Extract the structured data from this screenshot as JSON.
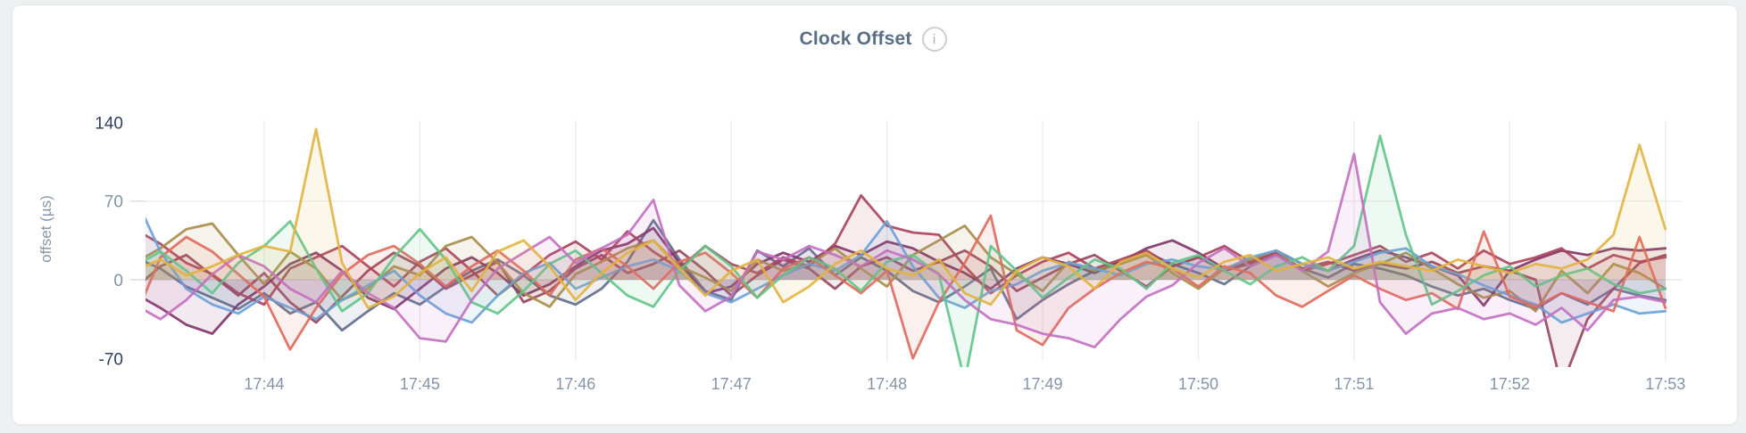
{
  "card": {
    "title": "Clock Offset",
    "info_icon_glyph": "i"
  },
  "axis": {
    "ylabel": "offset (µs)",
    "y_ticks": [
      140,
      70,
      0,
      -70
    ],
    "y_tick_color_major": "#32405f",
    "y_tick_color_minor": "#8594a6",
    "x_label_color": "#8594a6",
    "ylabel_color": "#8897a8",
    "grid_color": "#ededee",
    "zero_line_color": "#e4e5e7",
    "tick_dash_color": "#d9dbde"
  },
  "chart_data": {
    "type": "line",
    "title": "Clock Offset",
    "xlabel": "",
    "ylabel": "offset (µs)",
    "ylim": [
      -75,
      145
    ],
    "grid": true,
    "legend": "none",
    "x_start": "17:43:10",
    "x_interval_seconds": 10,
    "x_tick_labels": [
      "17:44",
      "17:45",
      "17:46",
      "17:47",
      "17:48",
      "17:49",
      "17:50",
      "17:51",
      "17:52",
      "17:53"
    ],
    "x_tick_indices": [
      5,
      11,
      17,
      23,
      29,
      35,
      41,
      47,
      53,
      59
    ],
    "fill_opacity": 0.1,
    "series": [
      {
        "id": "series-slate",
        "color": "#5e6c87",
        "values": [
          20,
          10,
          -6,
          -16,
          -26,
          -12,
          -30,
          -20,
          -45,
          -28,
          -12,
          -22,
          -6,
          8,
          18,
          4,
          -14,
          -22,
          -8,
          16,
          53,
          18,
          -10,
          -18,
          26,
          12,
          28,
          4,
          20,
          8,
          -10,
          -20,
          -6,
          10,
          -35,
          -18,
          -4,
          8,
          16,
          24,
          14,
          6,
          -4,
          12,
          22,
          10,
          2,
          14,
          10,
          4,
          -6,
          -14,
          -8,
          -18,
          -26,
          -12,
          -22,
          -8,
          -14,
          -18
        ]
      },
      {
        "id": "series-wine",
        "color": "#96455a",
        "values": [
          -8,
          12,
          22,
          4,
          -14,
          6,
          -20,
          -38,
          -15,
          8,
          24,
          12,
          -8,
          4,
          16,
          -20,
          -10,
          10,
          22,
          6,
          14,
          26,
          8,
          -14,
          4,
          18,
          10,
          -8,
          12,
          20,
          8,
          16,
          26,
          12,
          -10,
          2,
          14,
          22,
          8,
          -6,
          12,
          20,
          8,
          14,
          24,
          10,
          16,
          8,
          14,
          10,
          16,
          6,
          12,
          8,
          0,
          -95,
          -35,
          -8,
          15,
          22
        ]
      },
      {
        "id": "series-plum",
        "color": "#7d3366",
        "values": [
          -12,
          -25,
          -40,
          -48,
          -22,
          -6,
          14,
          24,
          8,
          -16,
          -26,
          -8,
          10,
          20,
          6,
          -14,
          -4,
          12,
          26,
          32,
          46,
          15,
          -12,
          -6,
          14,
          24,
          16,
          30,
          22,
          34,
          28,
          16,
          6,
          -8,
          10,
          20,
          14,
          6,
          16,
          28,
          35,
          24,
          10,
          16,
          26,
          14,
          8,
          18,
          26,
          20,
          12,
          4,
          -23,
          8,
          18,
          26,
          22,
          28,
          26,
          28
        ]
      },
      {
        "id": "series-maroon",
        "color": "#a84059",
        "values": [
          45,
          32,
          15,
          5,
          -12,
          -22,
          10,
          20,
          30,
          12,
          -6,
          16,
          28,
          8,
          -14,
          4,
          22,
          34,
          18,
          43,
          25,
          10,
          30,
          14,
          6,
          20,
          12,
          32,
          75,
          48,
          42,
          40,
          12,
          -12,
          4,
          16,
          24,
          10,
          18,
          26,
          12,
          20,
          30,
          16,
          24,
          8,
          14,
          22,
          30,
          16,
          24,
          10,
          26,
          14,
          20,
          28,
          10,
          22,
          16,
          20
        ]
      },
      {
        "id": "series-olive",
        "color": "#a98b4a",
        "values": [
          15,
          28,
          45,
          50,
          22,
          -4,
          25,
          10,
          -18,
          -8,
          12,
          4,
          30,
          38,
          15,
          -12,
          -24,
          5,
          16,
          28,
          35,
          12,
          2,
          -10,
          18,
          8,
          14,
          28,
          10,
          -6,
          22,
          35,
          48,
          20,
          5,
          -10,
          16,
          8,
          14,
          22,
          6,
          -8,
          10,
          18,
          26,
          8,
          -6,
          6,
          14,
          24,
          10,
          -4,
          -16,
          -10,
          -28,
          8,
          -12,
          14,
          6,
          -8
        ]
      },
      {
        "id": "series-blue",
        "color": "#6aa1d8",
        "values": [
          75,
          25,
          -8,
          -22,
          -30,
          -15,
          -25,
          -35,
          -18,
          -5,
          8,
          -14,
          -30,
          -38,
          -14,
          6,
          15,
          -8,
          2,
          12,
          18,
          8,
          -12,
          -20,
          -8,
          4,
          14,
          8,
          22,
          52,
          12,
          -16,
          -25,
          -10,
          -4,
          8,
          15,
          10,
          4,
          14,
          18,
          12,
          9,
          20,
          26,
          14,
          8,
          16,
          24,
          28,
          12,
          5,
          -5,
          -14,
          -22,
          -38,
          -30,
          -22,
          -30,
          -28
        ]
      },
      {
        "id": "series-salmon",
        "color": "#e0685b",
        "values": [
          -35,
          20,
          38,
          25,
          5,
          -15,
          -62,
          -25,
          5,
          22,
          30,
          14,
          -6,
          12,
          26,
          8,
          -14,
          18,
          28,
          12,
          -8,
          16,
          24,
          6,
          -16,
          10,
          20,
          4,
          -12,
          8,
          -70,
          -20,
          15,
          57,
          -45,
          -58,
          -25,
          -8,
          6,
          16,
          10,
          -6,
          12,
          6,
          -14,
          -24,
          -10,
          4,
          -8,
          -18,
          -12,
          -26,
          43,
          -15,
          -24,
          -12,
          -20,
          -28,
          38,
          -25
        ]
      },
      {
        "id": "series-green",
        "color": "#61c488",
        "values": [
          12,
          25,
          8,
          -12,
          15,
          30,
          52,
          10,
          -28,
          -12,
          20,
          45,
          18,
          -20,
          -30,
          -10,
          14,
          26,
          6,
          -14,
          -24,
          8,
          30,
          12,
          -16,
          4,
          20,
          10,
          -10,
          16,
          22,
          5,
          -90,
          30,
          8,
          -16,
          2,
          18,
          10,
          -8,
          15,
          22,
          8,
          -4,
          12,
          20,
          8,
          30,
          128,
          40,
          -22,
          -10,
          4,
          12,
          -6,
          4,
          10,
          -4,
          -12,
          -8
        ]
      },
      {
        "id": "series-orchid",
        "color": "#c36fc0",
        "values": [
          -22,
          -35,
          -18,
          5,
          22,
          12,
          -8,
          -20,
          8,
          -12,
          -25,
          -52,
          -55,
          -18,
          10,
          24,
          38,
          15,
          28,
          40,
          71,
          -5,
          -28,
          -15,
          25,
          18,
          30,
          22,
          12,
          26,
          18,
          5,
          -18,
          -35,
          -40,
          -48,
          -52,
          -60,
          -35,
          -15,
          -5,
          15,
          28,
          12,
          22,
          8,
          25,
          112,
          -20,
          -48,
          -30,
          -25,
          -35,
          -30,
          -40,
          -25,
          -45,
          -18,
          -15,
          -20
        ]
      },
      {
        "id": "series-gold",
        "color": "#e2b23f",
        "values": [
          8,
          18,
          4,
          12,
          22,
          30,
          25,
          134,
          15,
          -25,
          -15,
          6,
          20,
          -10,
          25,
          35,
          12,
          -18,
          6,
          24,
          35,
          10,
          -14,
          8,
          18,
          -20,
          -6,
          14,
          26,
          10,
          4,
          18,
          -12,
          -22,
          8,
          20,
          12,
          -8,
          16,
          24,
          10,
          2,
          16,
          22,
          8,
          14,
          20,
          10,
          16,
          12,
          8,
          18,
          12,
          6,
          14,
          10,
          18,
          40,
          120,
          45
        ]
      }
    ]
  }
}
